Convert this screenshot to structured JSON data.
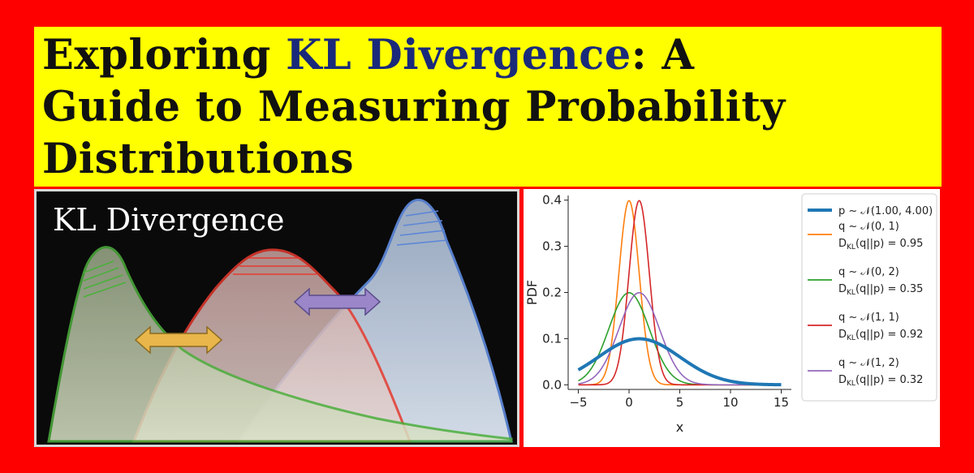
{
  "title": {
    "line1_a": "Exploring ",
    "line1_b": "KL Divergence",
    "line1_c": ": A",
    "line2": "Guide to Measuring Probability",
    "line3": "Distributions"
  },
  "illustration": {
    "heading": "KL Divergence",
    "colors": {
      "green": "#4caf3c",
      "red": "#e63a2e",
      "blue": "#5c86d6",
      "gold_arrow": "#e8b64a",
      "purple_arrow": "#9a86c8"
    }
  },
  "chart_data": {
    "type": "line",
    "xlabel": "x",
    "ylabel": "PDF",
    "xlim": [
      -6,
      16
    ],
    "ylim": [
      -0.01,
      0.41
    ],
    "xticks": [
      -5,
      0,
      5,
      10,
      15
    ],
    "yticks": [
      0.0,
      0.1,
      0.2,
      0.3,
      0.4
    ],
    "x_range": [
      -5,
      15
    ],
    "legend_position": "right",
    "series": [
      {
        "name": "p ~ 𝒩(1.00, 4.00)",
        "mean": 1.0,
        "std": 4.0,
        "color": "#1f77b4",
        "width": 4
      },
      {
        "name": "q ~ 𝒩(0, 1)",
        "kl": "D_KL(q||p) = 0.95",
        "mean": 0,
        "std": 1,
        "color": "#ff7f0e",
        "width": 1.6
      },
      {
        "name": "q ~ 𝒩(0, 2)",
        "kl": "D_KL(q||p) = 0.35",
        "mean": 0,
        "std": 2,
        "color": "#2ca02c",
        "width": 1.6
      },
      {
        "name": "q ~ 𝒩(1, 1)",
        "kl": "D_KL(q||p) = 0.92",
        "mean": 1,
        "std": 1,
        "color": "#d62728",
        "width": 1.6
      },
      {
        "name": "q ~ 𝒩(1, 2)",
        "kl": "D_KL(q||p) = 0.32",
        "mean": 1,
        "std": 2,
        "color": "#9467bd",
        "width": 1.6
      }
    ]
  }
}
